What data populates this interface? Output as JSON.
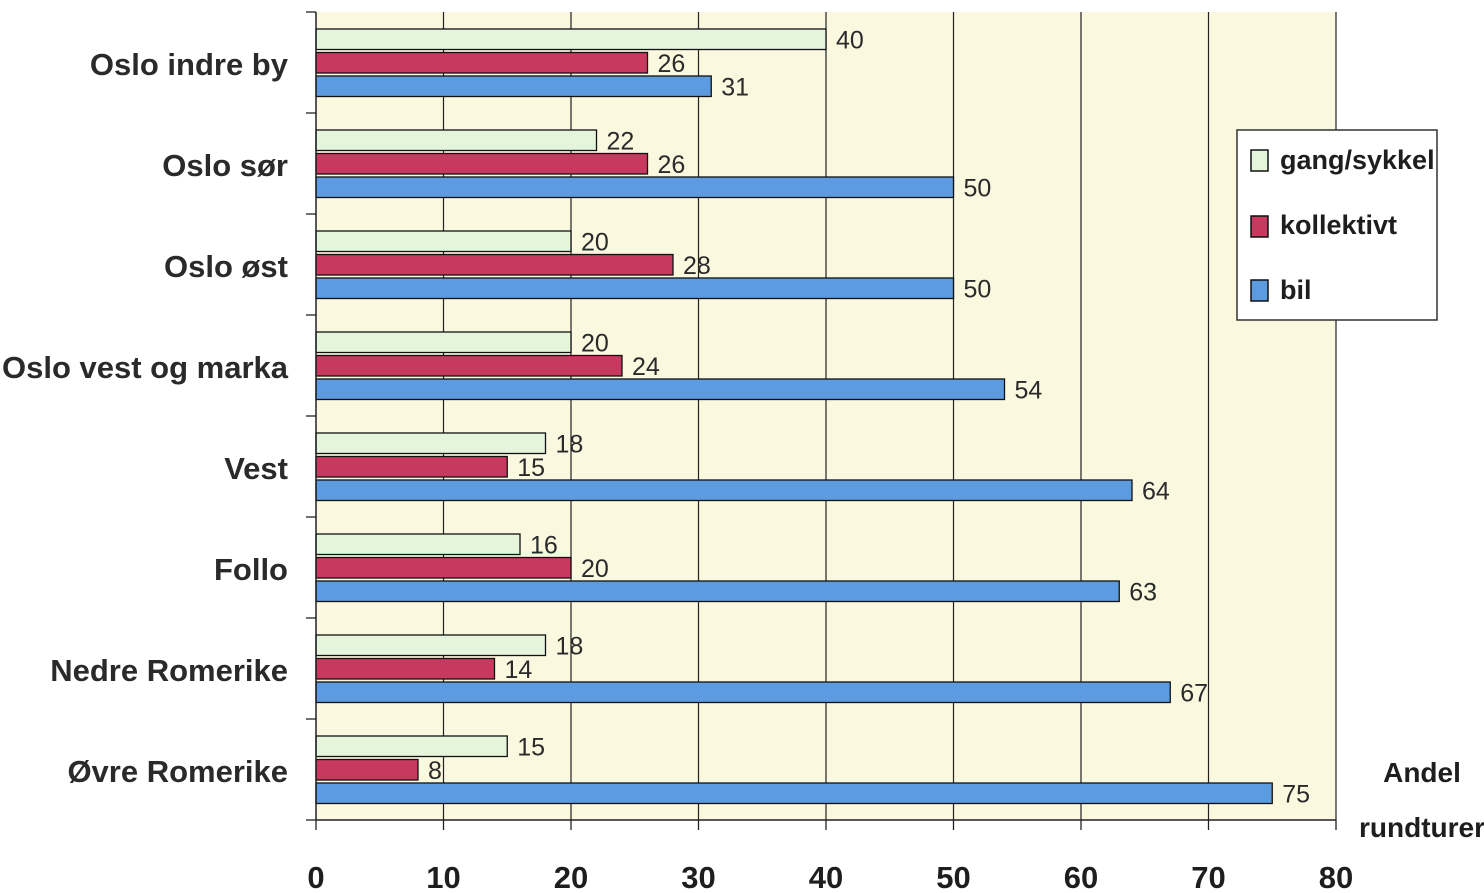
{
  "chart_data": {
    "type": "bar",
    "orientation": "horizontal",
    "categories": [
      "Oslo indre by",
      "Oslo sør",
      "Oslo øst",
      "Oslo vest og marka",
      "Vest",
      "Follo",
      "Nedre Romerike",
      "Øvre Romerike"
    ],
    "series": [
      {
        "name": "gang/sykkel",
        "color": "#e4f5dc",
        "values": [
          40,
          22,
          20,
          20,
          18,
          16,
          18,
          15
        ]
      },
      {
        "name": "kollektivt",
        "color": "#c8395f",
        "values": [
          26,
          26,
          28,
          24,
          15,
          20,
          14,
          8
        ]
      },
      {
        "name": "bil",
        "color": "#5d9be0",
        "values": [
          31,
          50,
          50,
          54,
          64,
          63,
          67,
          75
        ]
      }
    ],
    "xlim": [
      0,
      80
    ],
    "xticks": [
      0,
      10,
      20,
      30,
      40,
      50,
      60,
      70,
      80
    ],
    "xlabel_line1": "Andel",
    "xlabel_line2": "rundturer",
    "grid": "vertical",
    "plot_background": "#fbf8e0",
    "legend_position": "right"
  }
}
